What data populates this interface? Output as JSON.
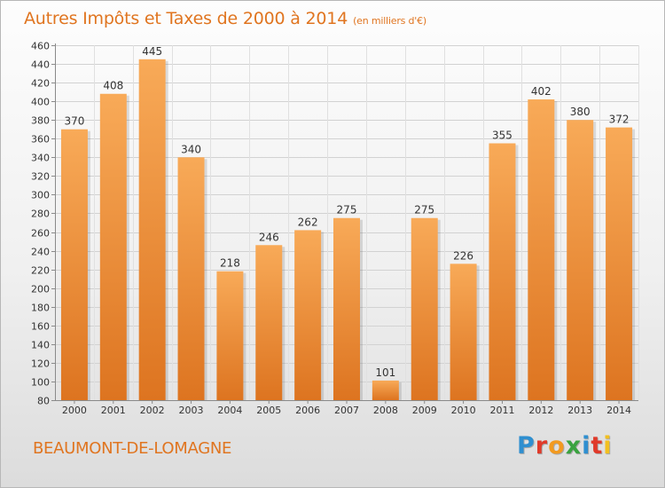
{
  "header": {
    "title": "Autres Impôts et Taxes de 2000 à 2014",
    "subtitle": "(en milliers d'€)"
  },
  "footer": {
    "location": "BEAUMONT-DE-LOMAGNE",
    "logo_text": "Proxiti"
  },
  "colors": {
    "title": "#e07520",
    "bar_light": "#f8aa58",
    "bar_dark": "#dd7420",
    "logo_letters": [
      "#2f8fd0",
      "#e03a2a",
      "#f29a20",
      "#3aa340",
      "#2f8fd0",
      "#e03a2a",
      "#f2c020"
    ]
  },
  "chart_data": {
    "type": "bar",
    "categories": [
      "2000",
      "2001",
      "2002",
      "2003",
      "2004",
      "2005",
      "2006",
      "2007",
      "2008",
      "2009",
      "2010",
      "2011",
      "2012",
      "2013",
      "2014"
    ],
    "values": [
      370,
      408,
      445,
      340,
      218,
      246,
      262,
      275,
      101,
      275,
      226,
      355,
      402,
      380,
      372
    ],
    "data_labels": [
      "370",
      "408",
      "445",
      "340",
      "218",
      "246",
      "262",
      "275",
      "101",
      "275",
      "226",
      "355",
      "402",
      "380",
      "372"
    ],
    "yticks": [
      "80",
      "100",
      "120",
      "140",
      "160",
      "180",
      "200",
      "220",
      "240",
      "260",
      "280",
      "300",
      "320",
      "340",
      "360",
      "380",
      "400",
      "420",
      "440",
      "460"
    ],
    "ylim": [
      80,
      460
    ],
    "title": "Autres Impôts et Taxes de 2000 à 2014",
    "subtitle": "(en milliers d'€)",
    "xlabel": "",
    "ylabel": "",
    "grid": true
  }
}
